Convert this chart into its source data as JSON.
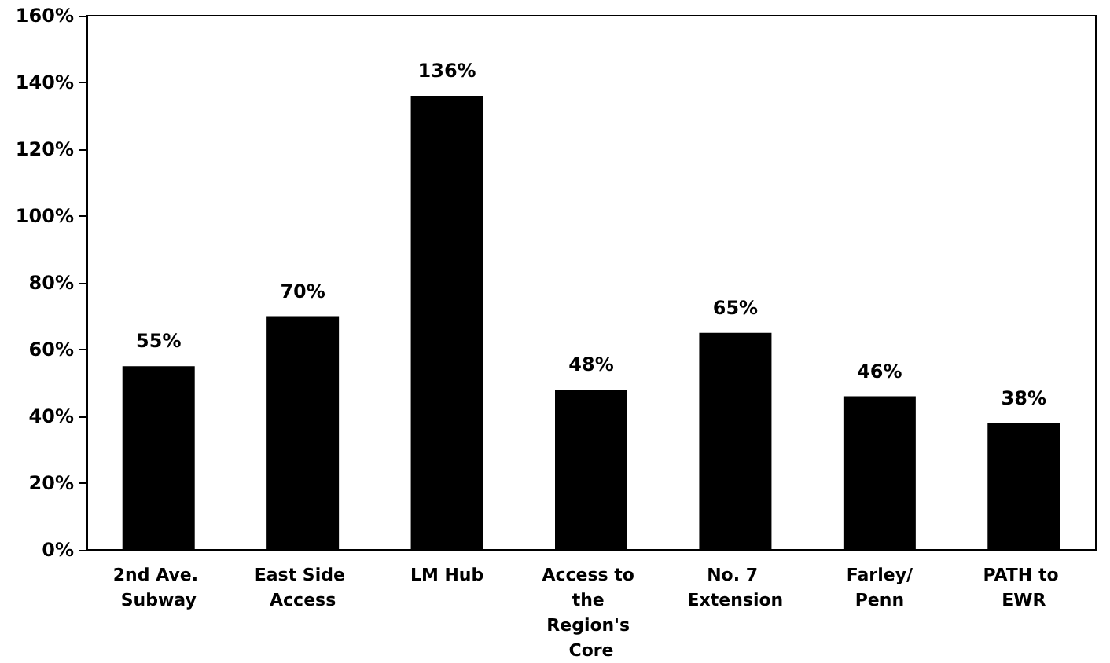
{
  "chart_data": {
    "type": "bar",
    "categories": [
      "2nd Ave. Subway",
      "East Side Access",
      "LM Hub",
      "Access to the Region's Core",
      "No. 7 Extension",
      "Farley/Penn",
      "PATH to EWR"
    ],
    "values": [
      55,
      70,
      136,
      48,
      65,
      46,
      38
    ],
    "value_labels": [
      "55%",
      "70%",
      "136%",
      "48%",
      "65%",
      "46%",
      "38%"
    ],
    "color": "#000000",
    "ylim": [
      0,
      160
    ],
    "yticks": [
      {
        "value": 0,
        "label": "0%"
      },
      {
        "value": 20,
        "label": "20%"
      },
      {
        "value": 40,
        "label": "40%"
      },
      {
        "value": 60,
        "label": "60%"
      },
      {
        "value": 80,
        "label": "80%"
      },
      {
        "value": 100,
        "label": "100%"
      },
      {
        "value": 120,
        "label": "120%"
      },
      {
        "value": 140,
        "label": "140%"
      },
      {
        "value": 160,
        "label": "160%"
      }
    ],
    "grid": false
  }
}
